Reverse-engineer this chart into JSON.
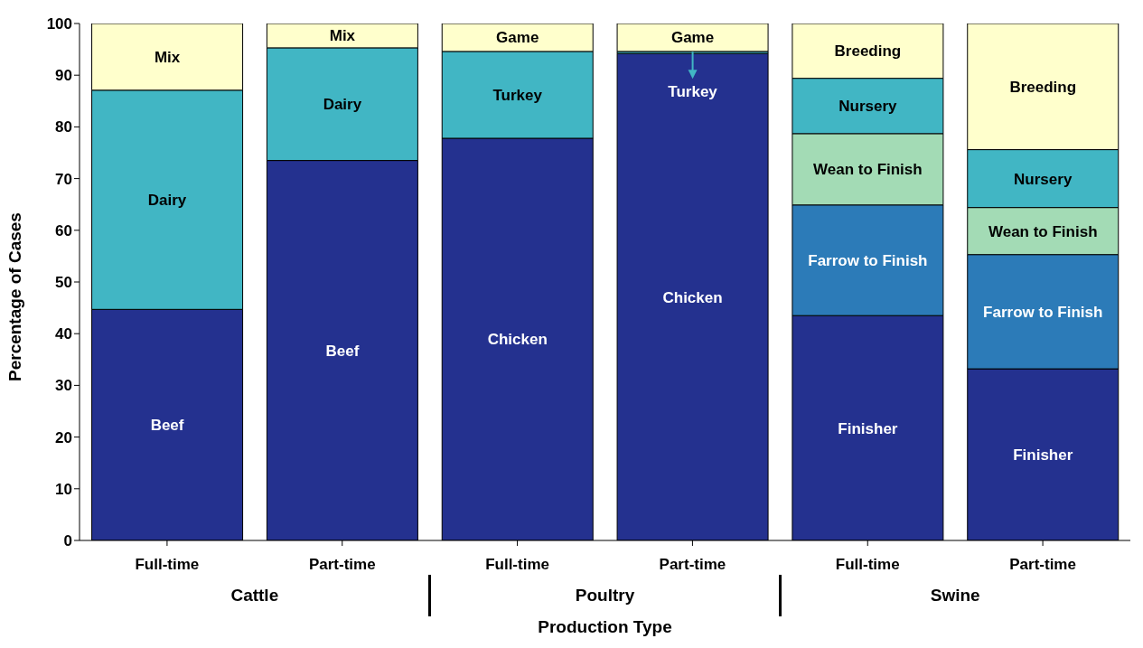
{
  "chart_data": {
    "type": "bar",
    "stacked": true,
    "xlabel": "Production Type",
    "ylabel": "Percentage of Cases",
    "categories": [
      "Full-time",
      "Part-time",
      "Full-time",
      "Part-time",
      "Full-time",
      "Part-time"
    ],
    "annotations": [
      "Cattle",
      "Poultry",
      "Swine"
    ],
    "series": [
      {
        "color": "#24318f",
        "values": [
          44.7,
          73.5,
          77.8,
          94.2,
          43.5,
          33.2
        ],
        "value_labels": [
          "Beef",
          "Beef",
          "Chicken",
          "Chicken",
          "Finisher",
          "Finisher"
        ]
      },
      {
        "color": "#2c7bb8",
        "values": [
          null,
          null,
          null,
          null,
          21.4,
          22.1
        ],
        "value_labels": [
          null,
          null,
          null,
          null,
          "Farrow to Finish",
          "Farrow to Finish"
        ]
      },
      {
        "color": "#a3dbb5",
        "values": [
          null,
          null,
          null,
          null,
          13.8,
          9.1
        ],
        "value_labels": [
          null,
          null,
          null,
          null,
          "Wean to Finish",
          "Wean to Finish"
        ]
      },
      {
        "color": "#41b6c4",
        "values": [
          42.4,
          21.8,
          16.8,
          0.4,
          10.7,
          11.2
        ],
        "value_labels": [
          "Dairy",
          "Dairy",
          "Turkey",
          "Turkey",
          "Nursery",
          "Nursery"
        ]
      },
      {
        "color": "#ffffcc",
        "values": [
          12.9,
          4.7,
          5.4,
          5.4,
          10.6,
          24.4
        ],
        "value_labels": [
          "Mix",
          "Mix",
          "Game",
          "Game",
          "Breeding",
          "Breeding"
        ]
      }
    ],
    "ylim": [
      0,
      100
    ],
    "yticks": [
      0,
      10,
      20,
      30,
      40,
      50,
      60,
      70,
      80,
      90,
      100
    ],
    "grid": false,
    "legend": false
  }
}
